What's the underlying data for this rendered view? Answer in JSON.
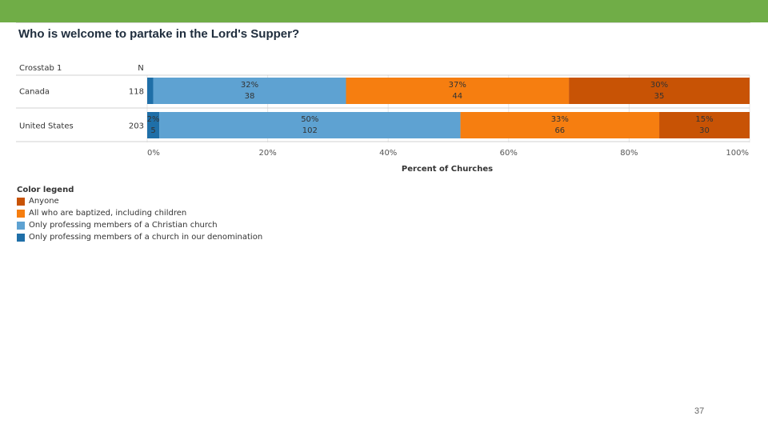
{
  "slide": {
    "title": "Who is welcome to partake in the Lord's Supper?",
    "page_number": "37"
  },
  "chart_data": {
    "type": "bar",
    "orientation": "horizontal",
    "stacked": true,
    "header_row_label": "Crosstab 1",
    "n_label": "N",
    "categories": [
      "Canada",
      "United States"
    ],
    "n_values": [
      "118",
      "203"
    ],
    "series": [
      {
        "name": "Only professing members of a church in our denomination",
        "color": "#1f6fa8",
        "values": [
          1,
          2
        ],
        "pct_labels": [
          "",
          "2%"
        ],
        "count_labels": [
          "",
          "5"
        ]
      },
      {
        "name": "Only professing members of a Christian church",
        "color": "#5ea2d2",
        "values": [
          32,
          50
        ],
        "pct_labels": [
          "32%",
          "50%"
        ],
        "count_labels": [
          "38",
          "102"
        ]
      },
      {
        "name": "All who are baptized, including children",
        "color": "#f67e10",
        "values": [
          37,
          33
        ],
        "pct_labels": [
          "37%",
          "33%"
        ],
        "count_labels": [
          "44",
          "66"
        ]
      },
      {
        "name": "Anyone",
        "color": "#c85305",
        "values": [
          30,
          15
        ],
        "pct_labels": [
          "30%",
          "15%"
        ],
        "count_labels": [
          "35",
          "30"
        ]
      }
    ],
    "xlim": [
      0,
      100
    ],
    "x_ticks": [
      "0%",
      "20%",
      "40%",
      "60%",
      "80%",
      "100%"
    ],
    "xlabel": "Percent of Churches",
    "legend_title": "Color legend",
    "legend_order": [
      {
        "name": "Anyone",
        "color": "#c85305"
      },
      {
        "name": "All who are baptized, including children",
        "color": "#f67e10"
      },
      {
        "name": "Only professing members of a Christian church",
        "color": "#5ea2d2"
      },
      {
        "name": "Only professing members of a church in our denomination",
        "color": "#1f6fa8"
      }
    ]
  }
}
